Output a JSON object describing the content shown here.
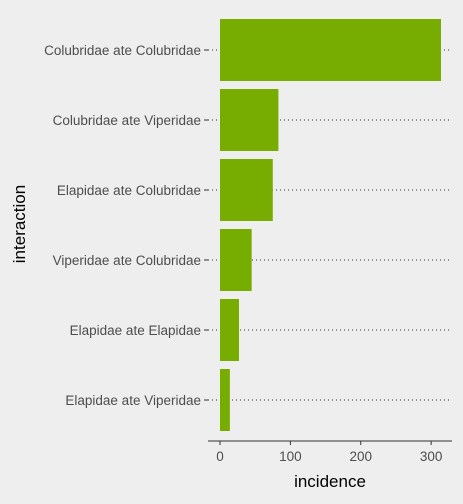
{
  "chart_data": {
    "type": "bar",
    "orientation": "horizontal",
    "title": "",
    "xlabel": "incidence",
    "ylabel": "interaction",
    "categories": [
      "Colubridae ate Colubridae",
      "Colubridae ate Viperidae",
      "Elapidae ate Colubridae",
      "Viperidae ate Colubridae",
      "Elapidae ate Elapidae",
      "Elapidae ate Viperidae"
    ],
    "values": [
      314,
      83,
      75,
      45,
      27,
      14
    ],
    "xlim": [
      -15,
      330
    ],
    "xticks": [
      0,
      100,
      200,
      300
    ],
    "bar_color": "#77ad00",
    "background": "#eeeeee",
    "grid": "dotted horizontal at categories",
    "legend": "none"
  }
}
